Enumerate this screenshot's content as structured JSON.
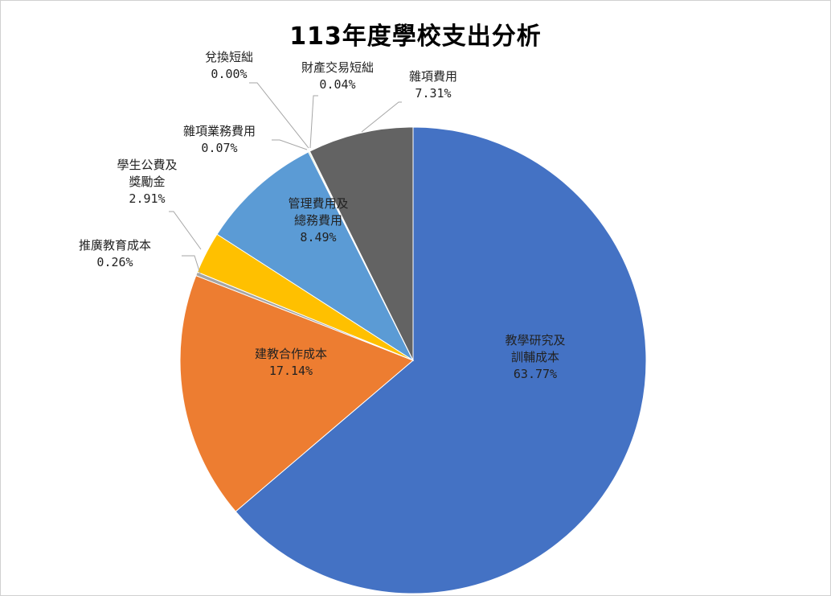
{
  "chart_data": {
    "type": "pie",
    "title": "113年度學校支出分析",
    "start_angle_deg": 0,
    "direction": "clockwise",
    "slices": [
      {
        "label_lines": [
          "教學研究及",
          "訓輔成本"
        ],
        "value": 63.77,
        "value_label": "63.77%",
        "color": "#4472C4"
      },
      {
        "label_lines": [
          "建教合作成本"
        ],
        "value": 17.14,
        "value_label": "17.14%",
        "color": "#ED7D31"
      },
      {
        "label_lines": [
          "推廣教育成本"
        ],
        "value": 0.26,
        "value_label": "0.26%",
        "color": "#A5A5A5"
      },
      {
        "label_lines": [
          "學生公費及",
          "獎勵金"
        ],
        "value": 2.91,
        "value_label": "2.91%",
        "color": "#FFC000"
      },
      {
        "label_lines": [
          "管理費用及",
          "總務費用"
        ],
        "value": 8.49,
        "value_label": "8.49%",
        "color": "#5B9BD5"
      },
      {
        "label_lines": [
          "雜項業務費用"
        ],
        "value": 0.07,
        "value_label": "0.07%",
        "color": "#70AD47"
      },
      {
        "label_lines": [
          "兌換短絀"
        ],
        "value": 0.0,
        "value_label": "0.00%",
        "color": "#264478"
      },
      {
        "label_lines": [
          "財產交易短絀"
        ],
        "value": 0.04,
        "value_label": "0.04%",
        "color": "#9E480E"
      },
      {
        "label_lines": [
          "雜項費用"
        ],
        "value": 7.31,
        "value_label": "7.31%",
        "color": "#636363"
      }
    ]
  }
}
